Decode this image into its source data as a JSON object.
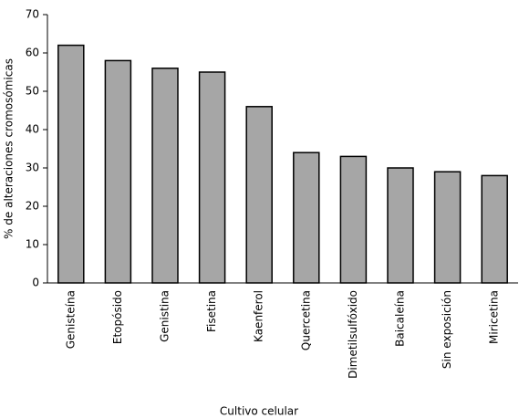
{
  "chart_data": {
    "type": "bar",
    "x_label": "Cultivo celular",
    "y_label": "% de alteraciones cromosómicas",
    "categories": [
      "Genisteína",
      "Etopósido",
      "Genistina",
      "Fisetina",
      "Kaenferol",
      "Quercetina",
      "Dimetilsulfóxido",
      "Baicaleína",
      "Sin exposición",
      "Miricetina"
    ],
    "values": [
      62,
      58,
      56,
      55,
      46,
      34,
      33,
      30,
      29,
      28
    ],
    "color": "#a6a6a6",
    "ylim": [
      0,
      70
    ],
    "yticks": [
      0,
      10,
      20,
      30,
      40,
      50,
      60,
      70
    ],
    "grid": false
  }
}
